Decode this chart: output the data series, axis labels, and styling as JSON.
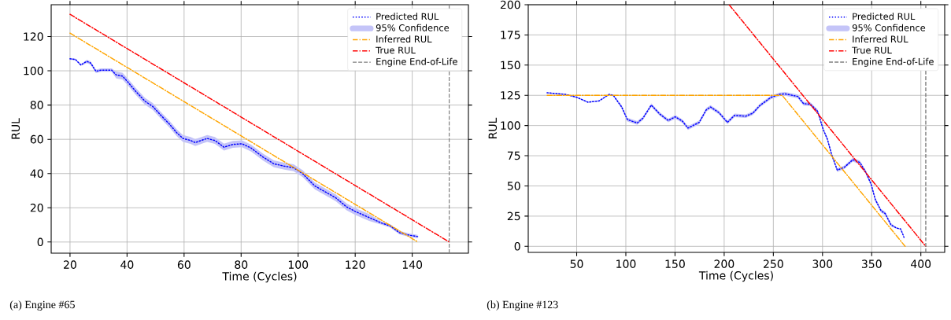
{
  "chart_data": [
    {
      "type": "line",
      "title": "(a) Engine #65",
      "xlabel": "Time (Cycles)",
      "ylabel": "RUL",
      "xlim": [
        13.4,
        159.7
      ],
      "ylim": [
        -6.5,
        138.6
      ],
      "xticks": [
        20,
        40,
        60,
        80,
        100,
        120,
        140
      ],
      "yticks": [
        0,
        20,
        40,
        60,
        80,
        100,
        120
      ],
      "grid": true,
      "legend": "top right",
      "annotations": [
        "95% Confidence"
      ],
      "series": [
        {
          "name": "Predicted RUL",
          "type": "line",
          "line_style": "dotted",
          "color": "#0000ff",
          "x": [
            20,
            21.9,
            23.8,
            25.9,
            27.2,
            29.1,
            30.9,
            34.6,
            36.2,
            38.4,
            40,
            43.1,
            46.3,
            49,
            52.2,
            54.8,
            57.5,
            59.6,
            62.3,
            63.9,
            68.1,
            70.8,
            74,
            77.1,
            80.3,
            83.5,
            87.7,
            91.5,
            95.2,
            98.4,
            101.6,
            105.8,
            109.5,
            113.2,
            117,
            120.1,
            124.9,
            129.2,
            132.3,
            135.5,
            138.7,
            141.9
          ],
          "values": [
            107,
            106.6,
            103.4,
            105.5,
            104.6,
            99.7,
            100.4,
            100.4,
            97.6,
            96.9,
            94,
            87.9,
            82.2,
            79.2,
            73.4,
            69,
            63.7,
            60.5,
            59.3,
            58.1,
            60.5,
            59.3,
            55.4,
            57,
            57.4,
            54.9,
            49.6,
            45.7,
            44.3,
            43.4,
            39.9,
            32.8,
            29.3,
            25.8,
            20.5,
            17.8,
            14.3,
            11.1,
            9.4,
            5.5,
            4.1,
            3.2
          ],
          "lower": [
            106.5,
            106.1,
            102.9,
            104.5,
            103.6,
            98.7,
            99.4,
            99.4,
            95.6,
            94.9,
            92,
            85.9,
            80.2,
            77.2,
            71.4,
            67,
            61.7,
            58.5,
            57.3,
            56.1,
            58.5,
            57.3,
            53.4,
            55,
            55.4,
            52.9,
            47.6,
            43.7,
            42.3,
            41.4,
            37.9,
            30.8,
            27.3,
            23.8,
            18.5,
            15.8,
            12.3,
            10.1,
            8.4,
            4.5,
            3.1,
            2.2
          ],
          "upper": [
            107.5,
            107.1,
            103.9,
            106.5,
            105.6,
            100.7,
            101.4,
            101.4,
            99.6,
            98.9,
            96,
            89.9,
            84.2,
            81.2,
            75.4,
            71,
            65.7,
            62.5,
            61.3,
            60.1,
            62.5,
            61.3,
            57.4,
            59,
            59.4,
            56.9,
            51.6,
            47.7,
            46.3,
            45.4,
            41.9,
            34.8,
            31.3,
            27.8,
            22.5,
            19.8,
            16.3,
            12.1,
            10.4,
            6.5,
            5.1,
            4.2
          ]
        },
        {
          "name": "Inferred RUL",
          "type": "line",
          "line_style": "dashdot",
          "color": "#ffa500",
          "x": [
            20,
            142
          ],
          "values": [
            122,
            0
          ]
        },
        {
          "name": "True RUL",
          "type": "line",
          "line_style": "dashdot",
          "color": "#ff0000",
          "x": [
            20,
            153
          ],
          "values": [
            133,
            0
          ]
        }
      ],
      "ref_lines": [
        {
          "axis": "x",
          "value": 153,
          "label": "Engine End-of-Life",
          "color": "#808080",
          "line_style": "dashed"
        }
      ]
    },
    {
      "type": "line",
      "title": "(b) Engine #123",
      "xlabel": "Time (Cycles)",
      "ylabel": "RUL",
      "xlim": [
        0.75,
        424.25
      ],
      "ylim": [
        -5,
        200
      ],
      "xticks": [
        50,
        100,
        150,
        200,
        250,
        300,
        350,
        400
      ],
      "yticks": [
        0,
        25,
        50,
        75,
        100,
        125,
        150,
        175,
        200
      ],
      "grid": true,
      "legend": "top right",
      "annotations": [
        "95% Confidence"
      ],
      "series": [
        {
          "name": "Predicted RUL",
          "type": "line",
          "line_style": "dotted",
          "color": "#0000ff",
          "x": [
            19.9,
            38.5,
            50,
            61.5,
            72.9,
            83,
            87.2,
            95.8,
            101.6,
            111.6,
            117.3,
            125.9,
            134.5,
            143.1,
            150.3,
            157.4,
            163.2,
            174.6,
            181.8,
            186.1,
            194.7,
            203.3,
            210.5,
            221.9,
            229.1,
            236.2,
            247.7,
            256.3,
            262,
            274.9,
            280.7,
            287.8,
            295,
            300.7,
            305,
            309.3,
            315,
            322.2,
            330.8,
            338,
            343.7,
            349.4,
            353.7,
            359.5,
            363.8,
            369.5,
            375.2,
            379.5,
            382.9
          ],
          "values": [
            127.1,
            125.8,
            123.4,
            119.3,
            120.4,
            125.8,
            125,
            115.3,
            104.9,
            102.1,
            106,
            116.9,
            109.5,
            104.2,
            107.2,
            103.7,
            97.9,
            102.6,
            113,
            115.3,
            110.7,
            102.6,
            108.4,
            107.7,
            110.2,
            116.5,
            123.4,
            125.8,
            126.2,
            124.1,
            118.1,
            117.6,
            111.8,
            96.8,
            88.6,
            75.9,
            63.1,
            65.4,
            71.7,
            69.4,
            61.9,
            51.5,
            38.7,
            29.5,
            27.1,
            17.9,
            15.1,
            14.4,
            7.4
          ],
          "lower": [
            126.6,
            125.3,
            122.9,
            118.8,
            119.9,
            125.3,
            124.5,
            113.8,
            103.4,
            100.6,
            104.5,
            115.4,
            108,
            102.7,
            105.7,
            102.2,
            96.4,
            101.1,
            111.5,
            113.8,
            109.2,
            101.1,
            106.9,
            106.2,
            108.7,
            115,
            121.9,
            124.3,
            124.7,
            122.6,
            116.6,
            116.1,
            110.3,
            95.3,
            87.1,
            74.4,
            61.6,
            63.9,
            70.2,
            67.9,
            60.4,
            50,
            37.2,
            28,
            25.6,
            16.4,
            14.6,
            13.9,
            6.9
          ],
          "upper": [
            127.6,
            126.3,
            123.9,
            119.8,
            120.9,
            126.3,
            125.5,
            116.8,
            106.4,
            103.6,
            107.5,
            118.4,
            111,
            105.7,
            108.7,
            105.2,
            99.4,
            104.1,
            114.5,
            116.8,
            112.2,
            104.1,
            109.9,
            109.2,
            111.7,
            118,
            124.9,
            127.3,
            127.7,
            125.6,
            119.6,
            119.1,
            113.3,
            98.3,
            90.1,
            77.4,
            64.6,
            66.9,
            73.2,
            70.9,
            63.4,
            53,
            40.2,
            31,
            28.6,
            19.4,
            15.6,
            14.9,
            7.9
          ]
        },
        {
          "name": "Inferred RUL",
          "type": "line",
          "line_style": "dashdot",
          "color": "#ffa500",
          "x": [
            20,
            259,
            384
          ],
          "values": [
            125,
            125,
            0
          ]
        },
        {
          "name": "True RUL",
          "type": "line",
          "line_style": "dashdot",
          "color": "#ff0000",
          "x": [
            205,
            405
          ],
          "values": [
            200,
            0
          ]
        }
      ],
      "ref_lines": [
        {
          "axis": "x",
          "value": 405,
          "label": "Engine End-of-Life",
          "color": "#808080",
          "line_style": "dashed"
        }
      ]
    }
  ]
}
